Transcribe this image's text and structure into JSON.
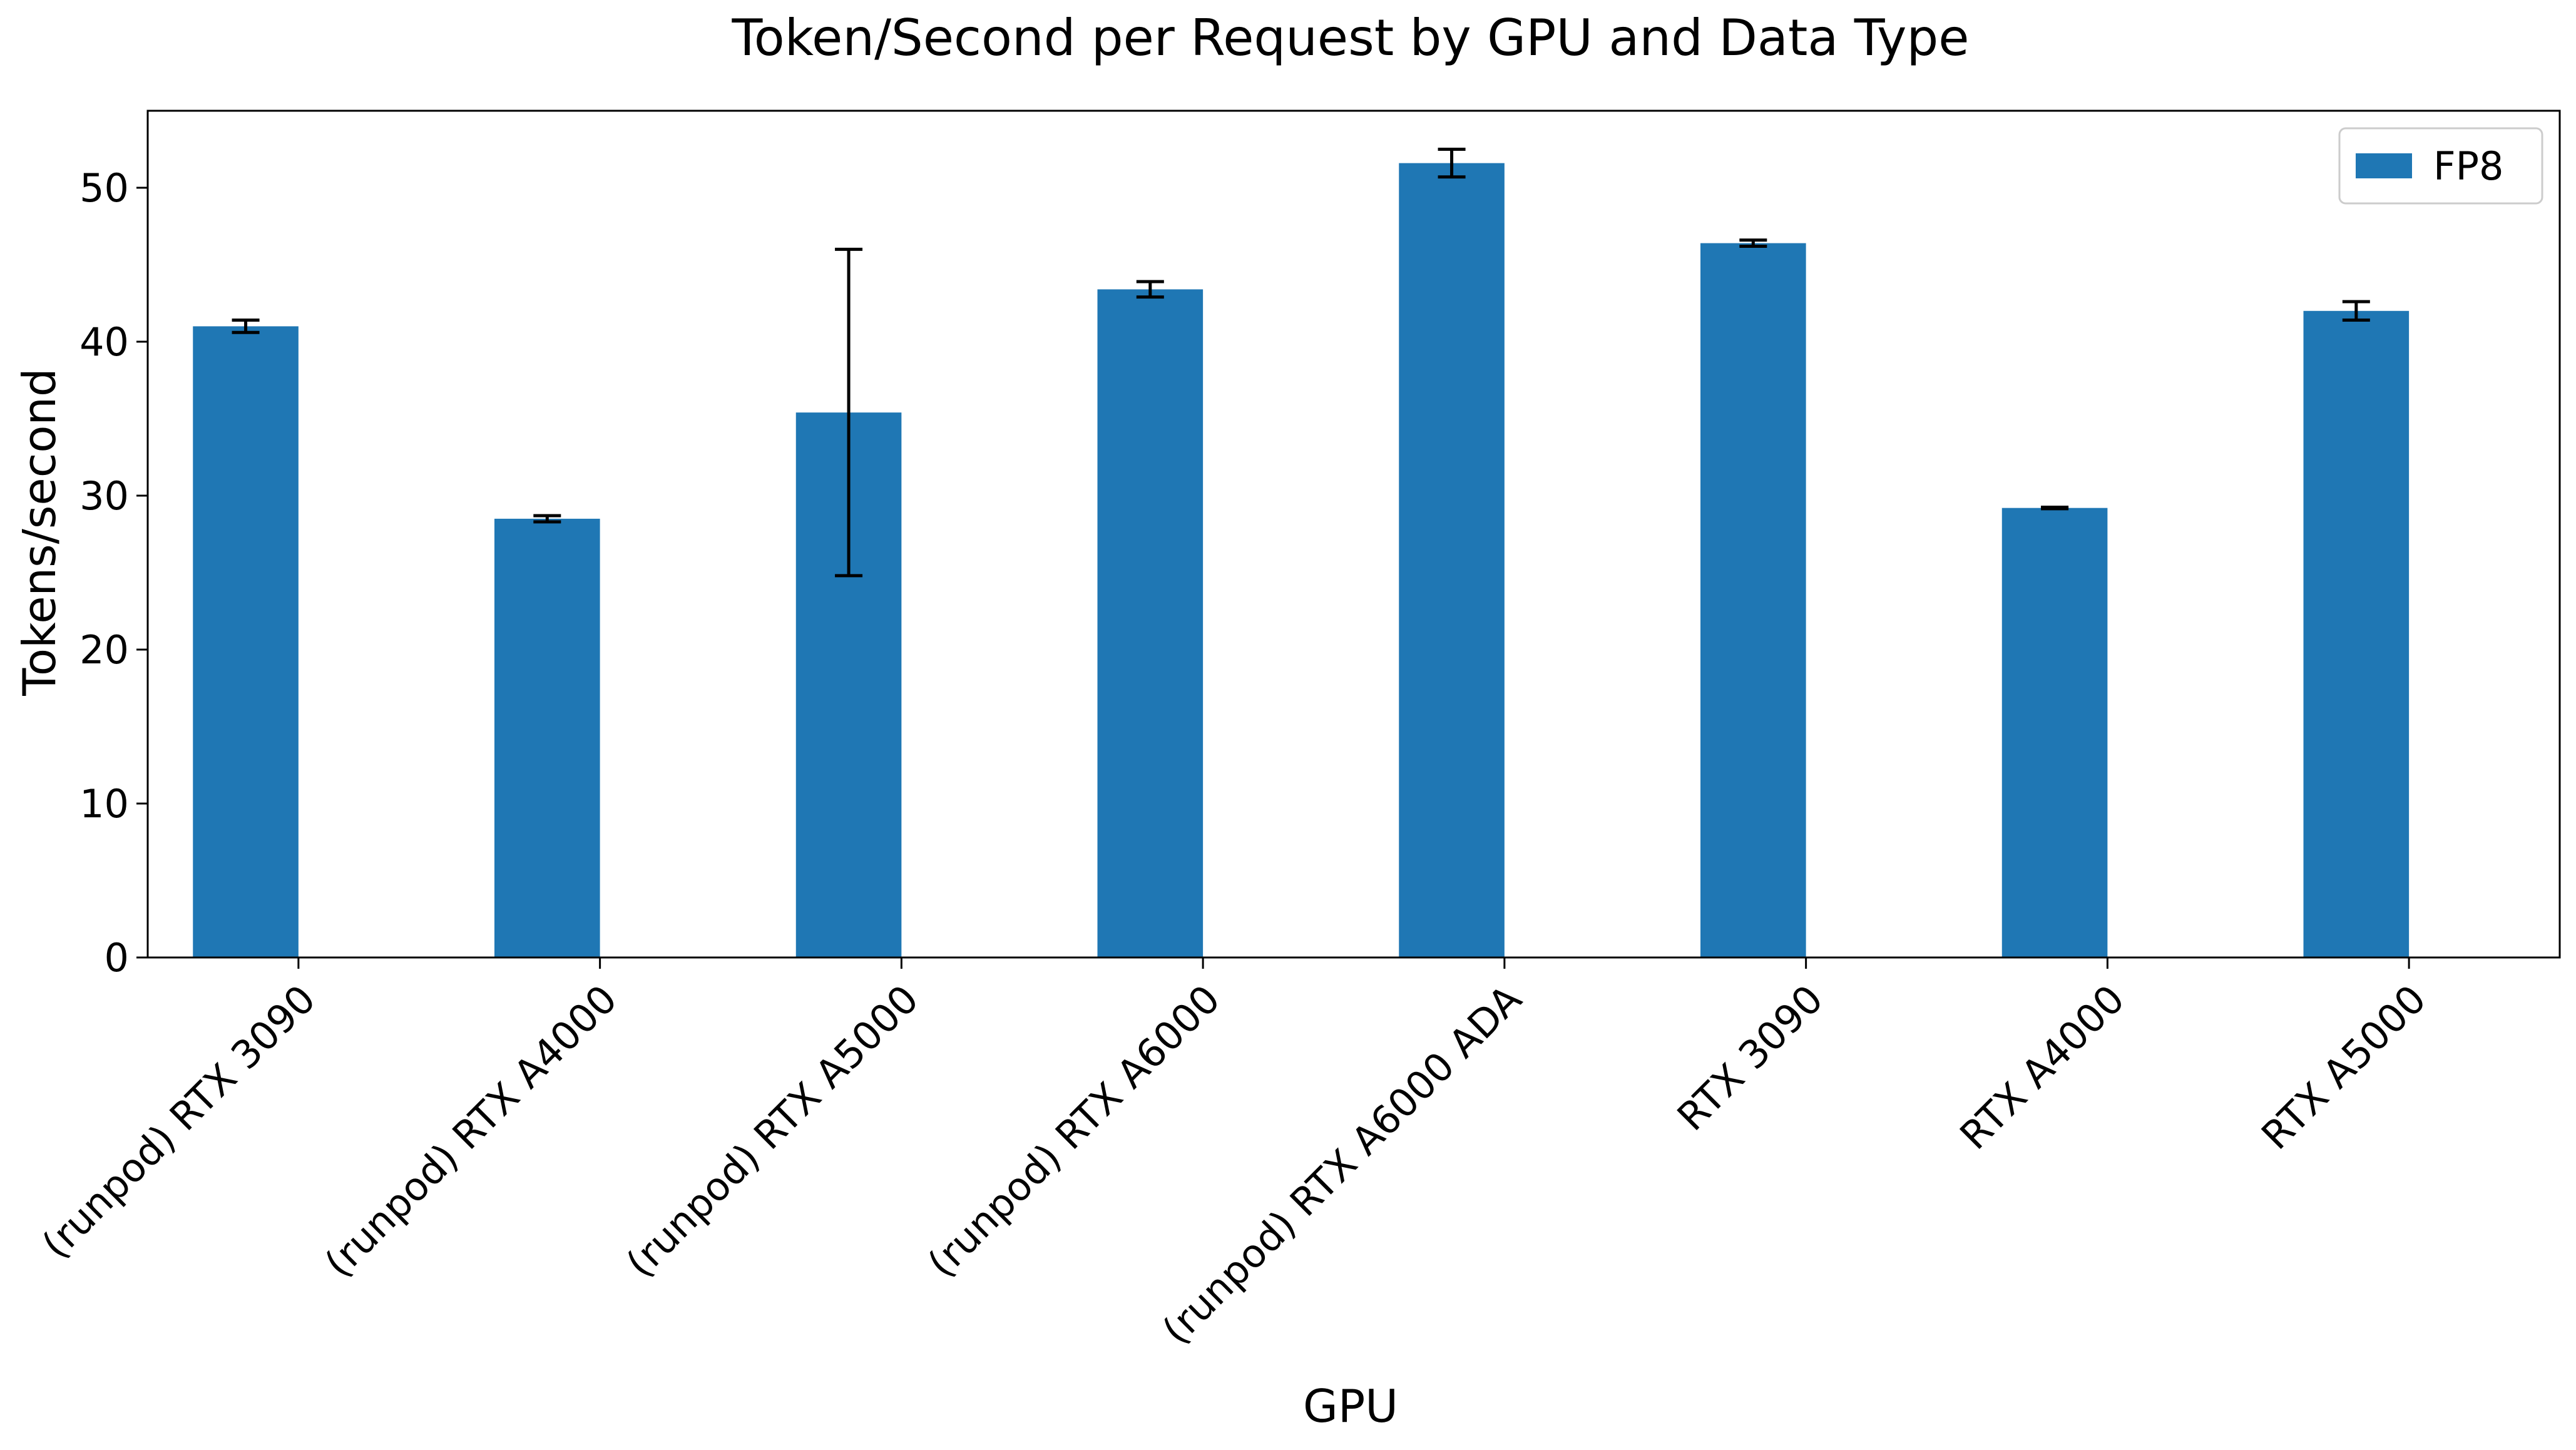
{
  "chart_data": {
    "type": "bar",
    "title": "Token/Second per Request by GPU and Data Type",
    "xlabel": "GPU",
    "ylabel": "Tokens/second",
    "categories": [
      "(runpod) RTX 3090",
      "(runpod) RTX A4000",
      "(runpod) RTX A5000",
      "(runpod) RTX A6000",
      "(runpod) RTX A6000 ADA",
      "RTX 3090",
      "RTX A4000",
      "RTX A5000"
    ],
    "series": [
      {
        "name": "FP8",
        "color": "#1f77b4",
        "values": [
          41.0,
          28.5,
          35.4,
          43.4,
          51.6,
          46.4,
          29.2,
          42.0
        ],
        "error": [
          0.4,
          0.2,
          10.6,
          0.5,
          0.9,
          0.2,
          0.05,
          0.6
        ]
      }
    ],
    "ylim": [
      0,
      55
    ],
    "yticks": [
      0,
      10,
      20,
      30,
      40,
      50
    ],
    "grid": false,
    "legend_position": "top-right"
  }
}
